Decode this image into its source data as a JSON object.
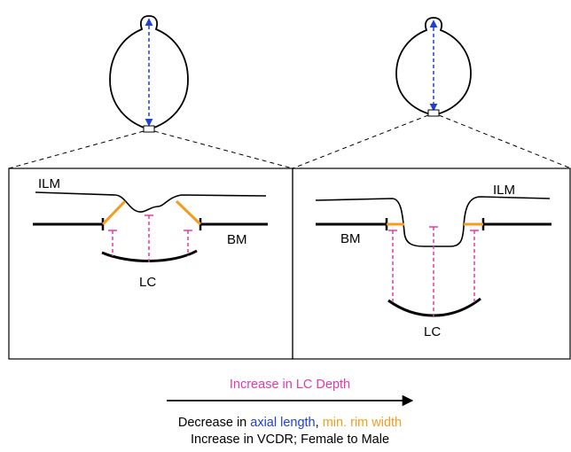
{
  "panels": {
    "left": {
      "ilm": "ILM",
      "bm": "BM",
      "lc": "LC"
    },
    "right": {
      "ilm": "ILM",
      "bm": "BM",
      "lc": "LC"
    }
  },
  "caption": {
    "line1": "Increase in LC Depth",
    "line2_prefix": "Decrease in ",
    "line2_axial": "axial length",
    "line2_sep": ", ",
    "line2_rim": "min. rim width",
    "line3": "Increase in VCDR; Female to Male"
  },
  "colors": {
    "axial_length": "#1f3fd8",
    "rim_width": "#f39c1e",
    "lc_depth": "#e23aa6",
    "outline": "#000000"
  }
}
